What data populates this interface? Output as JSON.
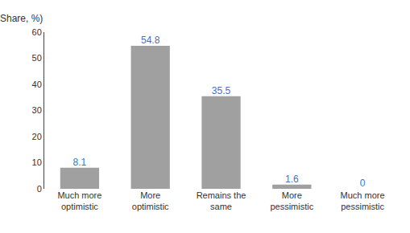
{
  "chart_data": {
    "type": "bar",
    "ylabel": "(Share, %)",
    "categories": [
      "Much more\noptimistic",
      "More\noptimistic",
      "Remains the\nsame",
      "More\npessimistic",
      "Much more\npessimistic"
    ],
    "values": [
      8.1,
      54.8,
      35.5,
      1.6,
      0
    ],
    "color": "#a0a0a0",
    "ylim": [
      0,
      60
    ],
    "yticks": [
      0,
      10,
      20,
      30,
      40,
      50,
      60
    ],
    "grid": false,
    "data_labels": true
  }
}
